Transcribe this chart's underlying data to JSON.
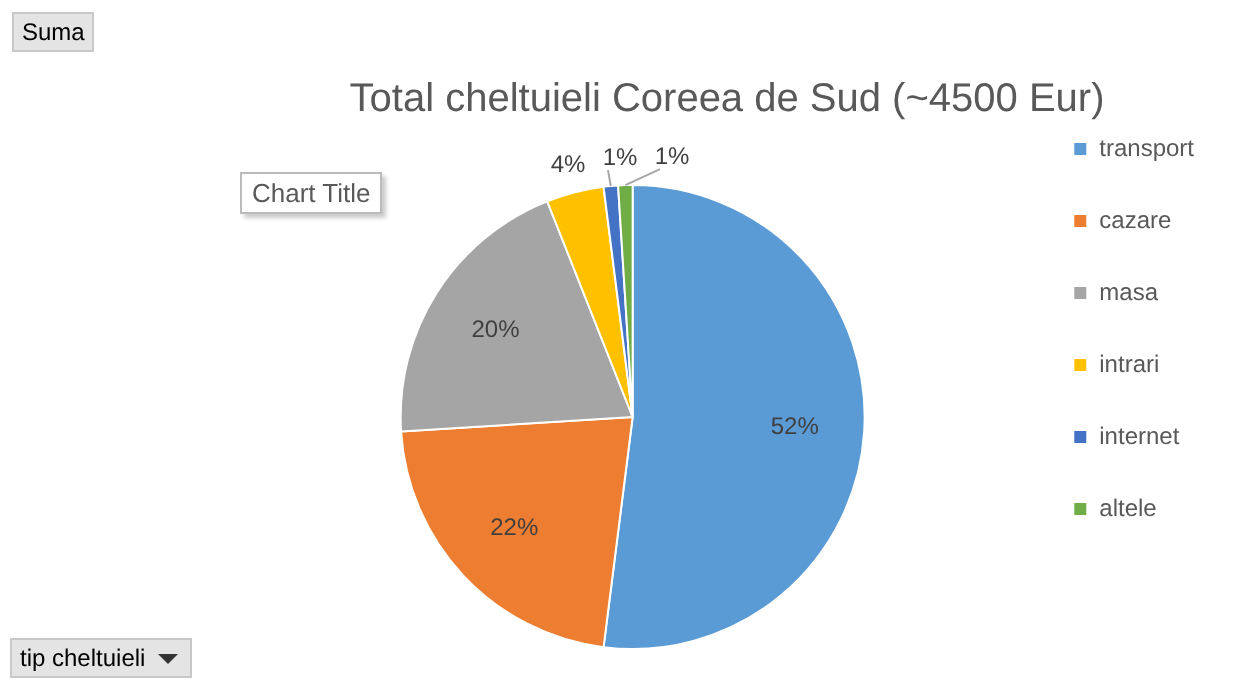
{
  "chart_data": {
    "type": "pie",
    "title": "Total cheltuieli Coreea de Sud (~4500 Eur)",
    "categories": [
      "transport",
      "cazare",
      "masa",
      "intrari",
      "internet",
      "altele"
    ],
    "values": [
      52,
      22,
      20,
      4,
      1,
      1
    ],
    "colors": [
      "#5b9bd5",
      "#ed7d31",
      "#a5a5a5",
      "#ffc000",
      "#4472c4",
      "#70ad47"
    ],
    "value_labels": [
      "52%",
      "22%",
      "20%",
      "4%",
      "1%",
      "1%"
    ],
    "legend": "right",
    "annotations": [
      "Suma",
      "Chart Title",
      "tip cheltuieli"
    ]
  }
}
